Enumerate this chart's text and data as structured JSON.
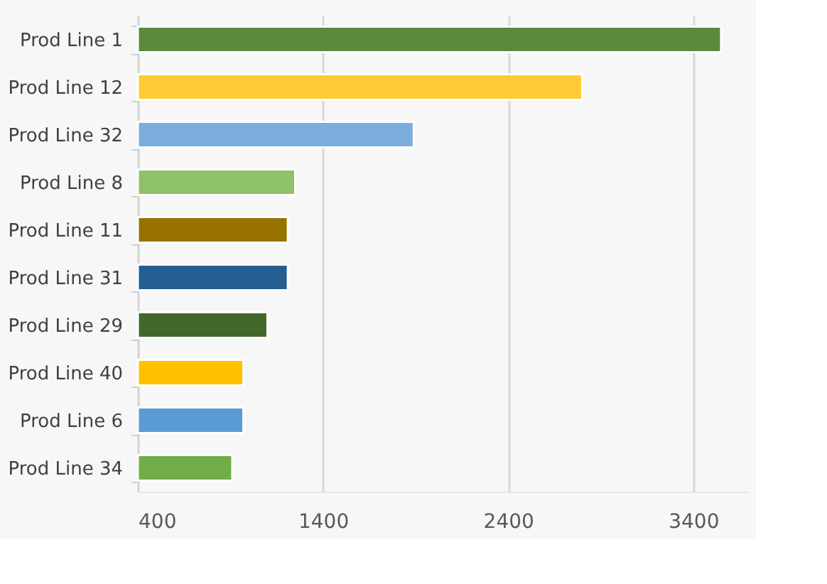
{
  "chart_data": {
    "type": "bar",
    "orientation": "horizontal",
    "categories": [
      "Prod Line 1",
      "Prod Line 12",
      "Prod Line 32",
      "Prod Line 8",
      "Prod Line 11",
      "Prod Line 31",
      "Prod Line 29",
      "Prod Line 40",
      "Prod Line 6",
      "Prod Line 34"
    ],
    "values": [
      3550,
      2800,
      1890,
      1250,
      1210,
      1210,
      1100,
      970,
      970,
      910
    ],
    "colors": [
      "#5b8a3c",
      "#ffca33",
      "#7aaddc",
      "#8fc16a",
      "#977200",
      "#255e91",
      "#43682b",
      "#ffc000",
      "#5b9bd5",
      "#70ad47"
    ],
    "xlim": [
      400,
      3700
    ],
    "xticks": [
      400,
      1400,
      2400,
      3400
    ],
    "grid": "x"
  }
}
